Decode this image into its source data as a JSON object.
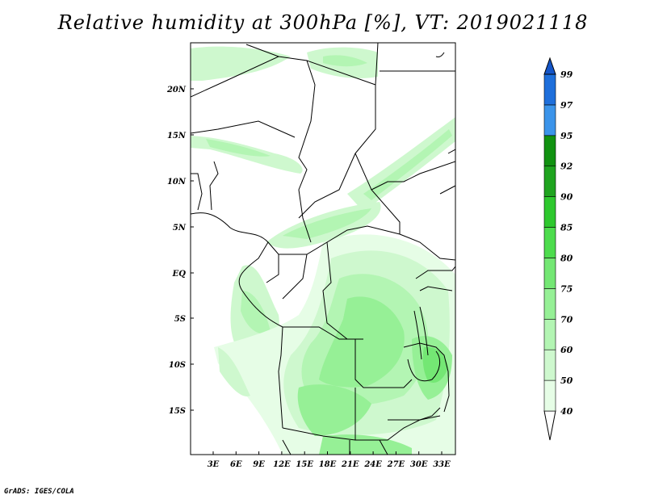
{
  "title": "Relative humidity at 300hPa [%], VT: 2019021118",
  "footer": "GrADS: IGES/COLA",
  "map": {
    "lat_labels": [
      "20N",
      "15N",
      "10N",
      "5N",
      "EQ",
      "5S",
      "10S",
      "15S"
    ],
    "lon_labels": [
      "3E",
      "6E",
      "9E",
      "12E",
      "15E",
      "18E",
      "21E",
      "24E",
      "27E",
      "30E",
      "33E"
    ]
  },
  "colorbar": {
    "levels": [
      "40",
      "50",
      "60",
      "70",
      "75",
      "80",
      "85",
      "90",
      "92",
      "95",
      "97",
      "99"
    ],
    "colors": [
      "#ffffff",
      "#e6fde6",
      "#cef8ce",
      "#b3f5b3",
      "#96f096",
      "#74e774",
      "#4ddc4d",
      "#2ec82e",
      "#1fa41f",
      "#119211",
      "#3b94ea",
      "#1e6fdb",
      "#1455c8"
    ]
  }
}
